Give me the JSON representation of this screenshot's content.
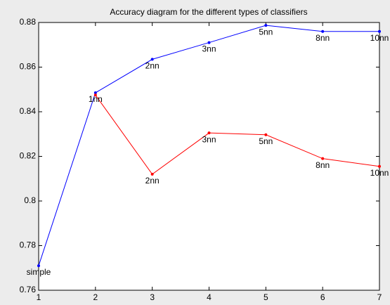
{
  "chart_data": {
    "type": "line",
    "title": "Accuracy diagram for the different types of classifiers",
    "x": [
      1,
      2,
      3,
      4,
      5,
      6,
      7
    ],
    "series": [
      {
        "name": "blue",
        "color": "#0000ff",
        "values": [
          0.771,
          0.8485,
          0.8635,
          0.871,
          0.8787,
          0.876,
          0.876
        ]
      },
      {
        "name": "red",
        "color": "#ff0000",
        "values": [
          null,
          0.8475,
          0.812,
          0.8305,
          0.8297,
          0.819,
          0.8155
        ]
      }
    ],
    "annotations": [
      {
        "text": "simple",
        "x": 1,
        "y": 0.771
      },
      {
        "text": "1nn",
        "x": 2,
        "y": 0.8485
      },
      {
        "text": "2nn",
        "x": 3,
        "y": 0.8635
      },
      {
        "text": "3nn",
        "x": 4,
        "y": 0.871
      },
      {
        "text": "5nn",
        "x": 5,
        "y": 0.8787
      },
      {
        "text": "8nn",
        "x": 6,
        "y": 0.876
      },
      {
        "text": "10nn",
        "x": 7,
        "y": 0.876
      },
      {
        "text": "2nn",
        "x": 3,
        "y": 0.812
      },
      {
        "text": "3nn",
        "x": 4,
        "y": 0.8305
      },
      {
        "text": "5nn",
        "x": 5,
        "y": 0.8297
      },
      {
        "text": "8nn",
        "x": 6,
        "y": 0.819
      },
      {
        "text": "10nn",
        "x": 7,
        "y": 0.8155
      }
    ],
    "xlim": [
      1,
      7
    ],
    "xticks": [
      1,
      2,
      3,
      4,
      5,
      6,
      7
    ],
    "ylim": [
      0.76,
      0.88
    ],
    "yticks": [
      0.76,
      0.78,
      0.8,
      0.82,
      0.84,
      0.86,
      0.88
    ],
    "grid": false
  }
}
